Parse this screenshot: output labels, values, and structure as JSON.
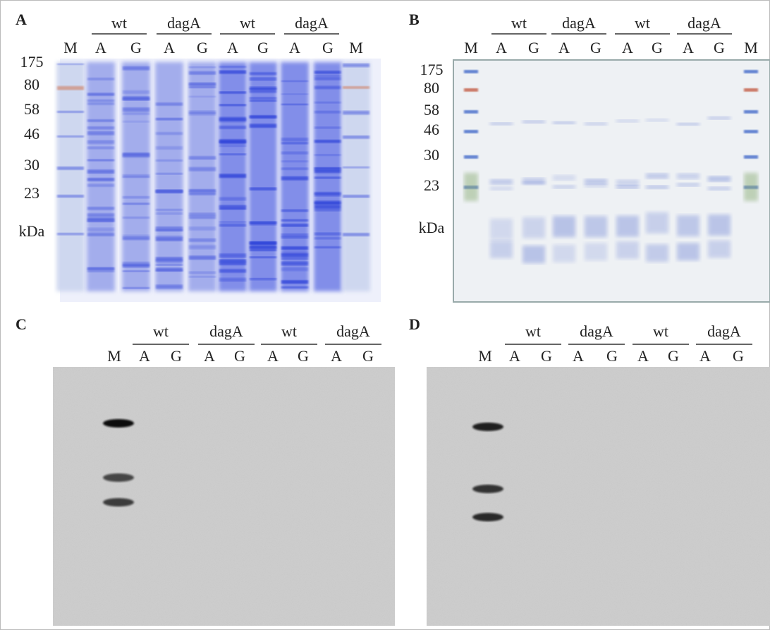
{
  "panels": [
    {
      "label": "A",
      "groups": [
        "wt",
        "dagA",
        "wt",
        "dagA"
      ],
      "lanes": [
        "M",
        "A",
        "G",
        "A",
        "G",
        "A",
        "G",
        "A",
        "G",
        "M"
      ],
      "markers": [
        "175",
        "80",
        "58",
        "46",
        "30",
        "23",
        "kDa"
      ]
    },
    {
      "label": "B",
      "groups": [
        "wt",
        "dagA",
        "wt",
        "dagA"
      ],
      "lanes": [
        "M",
        "A",
        "G",
        "A",
        "G",
        "A",
        "G",
        "A",
        "G",
        "M"
      ],
      "markers": [
        "175",
        "80",
        "58",
        "46",
        "30",
        "23",
        "kDa"
      ]
    },
    {
      "label": "C",
      "groups": [
        "wt",
        "dagA",
        "wt",
        "dagA"
      ],
      "lanes": [
        "M",
        "A",
        "G",
        "A",
        "G",
        "A",
        "G",
        "A",
        "G"
      ]
    },
    {
      "label": "D",
      "groups": [
        "wt",
        "dagA",
        "wt",
        "dagA"
      ],
      "lanes": [
        "M",
        "A",
        "G",
        "A",
        "G",
        "A",
        "G",
        "A",
        "G"
      ]
    }
  ]
}
